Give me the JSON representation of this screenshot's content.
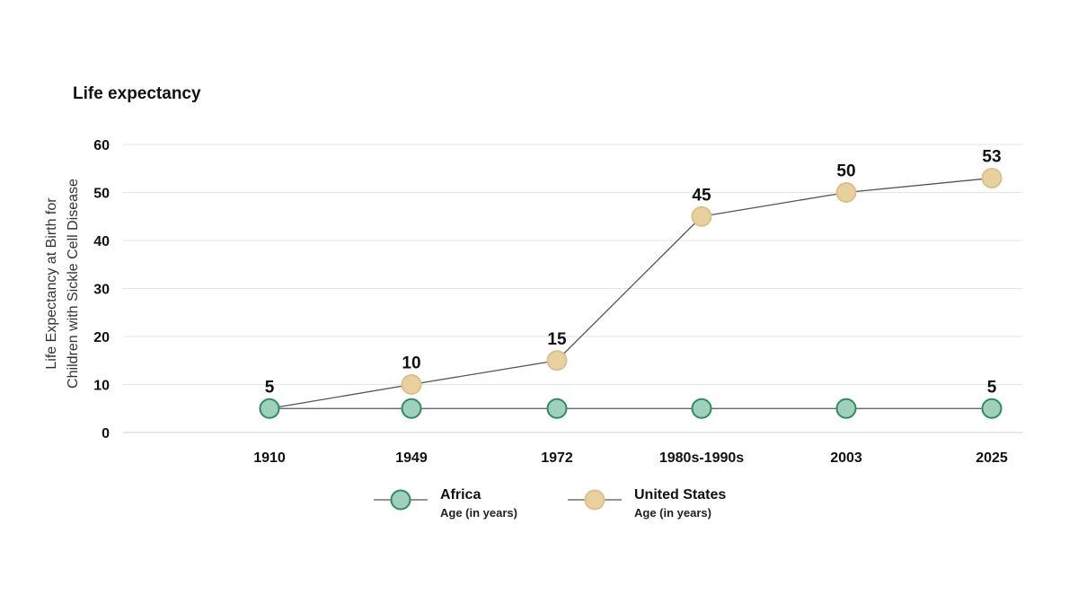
{
  "chart_data": {
    "type": "line",
    "title": "Life expectancy",
    "ylabel": "Life Expectancy at Birth for Children with Sickle Cell Disease",
    "xlabel": "",
    "categories": [
      "1910",
      "1949",
      "1972",
      "1980s-1990s",
      "2003",
      "2025"
    ],
    "ylim": [
      0,
      60
    ],
    "yticks": [
      0,
      10,
      20,
      30,
      40,
      50,
      60
    ],
    "grid": true,
    "legend_position": "bottom",
    "series": [
      {
        "name": "Africa",
        "subtitle": "Age (in years)",
        "values": [
          5,
          5,
          5,
          5,
          5,
          5
        ],
        "labeled": [
          true,
          false,
          false,
          false,
          false,
          true
        ],
        "fill": "#9fd0bb",
        "stroke": "#2e8b62"
      },
      {
        "name": "United States",
        "subtitle": "Age (in years)",
        "values": [
          5,
          10,
          15,
          45,
          50,
          53
        ],
        "labeled": [
          false,
          true,
          true,
          true,
          true,
          true
        ],
        "fill": "#e9d09f",
        "stroke": "#dcc08c"
      }
    ],
    "line_color": "#555555"
  }
}
